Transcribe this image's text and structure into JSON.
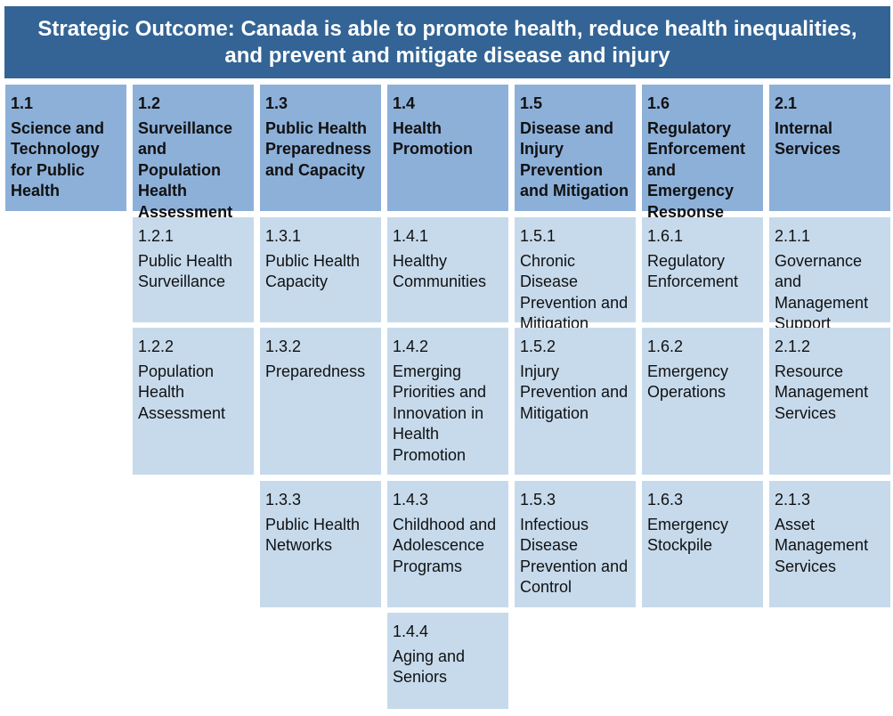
{
  "banner": {
    "line1": "Strategic Outcome: Canada is able to promote health, reduce health inequalities,",
    "line2": "and prevent and mitigate disease and injury"
  },
  "programs": [
    {
      "num": "1.1",
      "label": "Science and Technology for Public Health"
    },
    {
      "num": "1.2",
      "label": "Surveillance and Population Health Assessment"
    },
    {
      "num": "1.3",
      "label": "Public Health Preparedness and Capacity"
    },
    {
      "num": "1.4",
      "label": "Health Promotion"
    },
    {
      "num": "1.5",
      "label": "Disease and Injury Prevention and Mitigation"
    },
    {
      "num": "1.6",
      "label": "Regulatory Enforcement and Emergency Response"
    },
    {
      "num": "2.1",
      "label": "Internal Services"
    }
  ],
  "subprograms": {
    "p12": [
      {
        "num": "1.2.1",
        "label": "Public Health Surveillance"
      },
      {
        "num": "1.2.2",
        "label": "Population Health Assessment"
      }
    ],
    "p13": [
      {
        "num": "1.3.1",
        "label": "Public Health Capacity"
      },
      {
        "num": "1.3.2",
        "label": "Preparedness"
      },
      {
        "num": "1.3.3",
        "label": "Public Health Networks"
      }
    ],
    "p14": [
      {
        "num": "1.4.1",
        "label": "Healthy Communities"
      },
      {
        "num": "1.4.2",
        "label": "Emerging Priorities and Innovation in Health Promotion"
      },
      {
        "num": "1.4.3",
        "label": "Childhood and Adolescence Programs"
      },
      {
        "num": "1.4.4",
        "label": "Aging and Seniors"
      }
    ],
    "p15": [
      {
        "num": "1.5.1",
        "label": "Chronic Disease Prevention and Mitigation"
      },
      {
        "num": "1.5.2",
        "label": "Injury Prevention and Mitigation"
      },
      {
        "num": "1.5.3",
        "label": "Infectious Disease Prevention and Control"
      }
    ],
    "p16": [
      {
        "num": "1.6.1",
        "label": "Regulatory Enforcement"
      },
      {
        "num": "1.6.2",
        "label": "Emergency Operations"
      },
      {
        "num": "1.6.3",
        "label": "Emergency Stockpile"
      }
    ],
    "p21": [
      {
        "num": "2.1.1",
        "label": "Governance and Management Support"
      },
      {
        "num": "2.1.2",
        "label": "Resource Management Services"
      },
      {
        "num": "2.1.3",
        "label": "Asset Management Services"
      }
    ]
  },
  "colors": {
    "banner": "#336495",
    "program": "#8db0d9",
    "subprogram": "#c6daec"
  }
}
